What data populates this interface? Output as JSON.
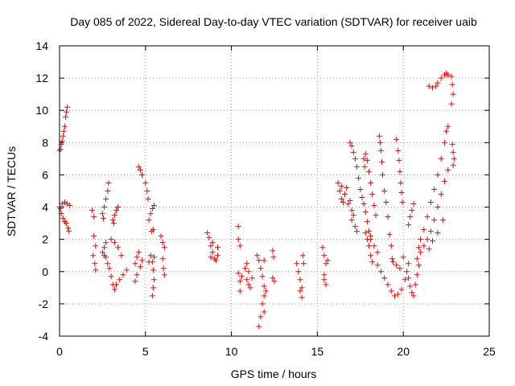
{
  "chart_data": {
    "type": "scatter",
    "title": "Day 085 of 2022, Sidereal Day-to-day VTEC variation (SDTVAR) for receiver uaib",
    "xlabel": "GPS time / hours",
    "ylabel": "SDTVAR / TECUs",
    "xlim": [
      0,
      25
    ],
    "ylim": [
      -4,
      14
    ],
    "xticks": [
      0,
      5,
      10,
      15,
      20,
      25
    ],
    "yticks": [
      -4,
      -2,
      0,
      2,
      4,
      6,
      8,
      10,
      12,
      14
    ],
    "grid": true,
    "marker": "+",
    "color": "#ff0000",
    "series": [
      {
        "name": "s1",
        "values": [
          [
            0.0,
            7.5
          ],
          [
            0.1,
            7.9
          ],
          [
            0.2,
            8.4
          ],
          [
            0.3,
            9.0
          ],
          [
            0.35,
            9.6
          ],
          [
            0.45,
            10.2
          ],
          [
            0.05,
            7.6
          ],
          [
            0.15,
            8.1
          ],
          [
            0.25,
            8.7
          ],
          [
            0.4,
            9.9
          ]
        ]
      },
      {
        "name": "s2",
        "values": [
          [
            0.0,
            4.0
          ],
          [
            0.1,
            3.6
          ],
          [
            0.2,
            3.3
          ],
          [
            0.3,
            3.1
          ],
          [
            0.4,
            3.0
          ],
          [
            0.5,
            2.7
          ],
          [
            0.55,
            2.5
          ],
          [
            0.15,
            4.2
          ],
          [
            0.3,
            4.3
          ],
          [
            0.45,
            4.2
          ],
          [
            0.6,
            4.1
          ],
          [
            0.05,
            3.9
          ]
        ]
      },
      {
        "name": "s3",
        "values": [
          [
            1.9,
            3.8
          ],
          [
            2.0,
            3.4
          ],
          [
            2.0,
            2.2
          ],
          [
            2.1,
            1.6
          ],
          [
            1.95,
            1.0
          ],
          [
            2.05,
            0.5
          ],
          [
            2.1,
            0.1
          ]
        ]
      },
      {
        "name": "s4",
        "values": [
          [
            2.5,
            3.6
          ],
          [
            2.6,
            4.0
          ],
          [
            2.7,
            4.5
          ],
          [
            2.8,
            5.0
          ],
          [
            2.85,
            5.5
          ],
          [
            2.55,
            3.3
          ]
        ]
      },
      {
        "name": "s5",
        "values": [
          [
            2.5,
            1.2
          ],
          [
            2.6,
            1.5
          ],
          [
            2.7,
            0.9
          ],
          [
            2.8,
            0.5
          ],
          [
            2.9,
            0.2
          ],
          [
            3.0,
            -0.3
          ],
          [
            3.1,
            -0.8
          ],
          [
            3.2,
            -1.1
          ],
          [
            3.3,
            -0.8
          ],
          [
            3.5,
            -0.5
          ],
          [
            3.7,
            -0.2
          ],
          [
            3.9,
            0.1
          ],
          [
            3.6,
            1.0
          ],
          [
            3.4,
            1.5
          ],
          [
            3.2,
            1.8
          ],
          [
            3.0,
            2.0
          ],
          [
            2.7,
            1.8
          ],
          [
            2.6,
            1.0
          ]
        ]
      },
      {
        "name": "s6",
        "values": [
          [
            3.1,
            3.2
          ],
          [
            3.2,
            3.5
          ],
          [
            3.3,
            3.8
          ],
          [
            3.4,
            4.0
          ],
          [
            3.15,
            3.0
          ]
        ]
      },
      {
        "name": "s7",
        "values": [
          [
            4.4,
            0.5
          ],
          [
            4.5,
            0.9
          ],
          [
            4.6,
            1.2
          ],
          [
            4.5,
            -0.2
          ],
          [
            4.4,
            -0.6
          ],
          [
            4.7,
            0.3
          ],
          [
            4.8,
            0.7
          ]
        ]
      },
      {
        "name": "s8",
        "values": [
          [
            4.6,
            6.5
          ],
          [
            4.7,
            6.3
          ],
          [
            4.8,
            6.0
          ],
          [
            5.0,
            5.5
          ],
          [
            5.1,
            5.0
          ],
          [
            5.15,
            4.5
          ]
        ]
      },
      {
        "name": "s9",
        "values": [
          [
            5.2,
            3.2
          ],
          [
            5.3,
            3.6
          ],
          [
            5.4,
            3.9
          ],
          [
            5.5,
            4.1
          ],
          [
            5.45,
            2.6
          ],
          [
            5.35,
            2.5
          ]
        ]
      },
      {
        "name": "s10",
        "values": [
          [
            5.3,
            1.0
          ],
          [
            5.4,
            0.6
          ],
          [
            5.45,
            0.1
          ],
          [
            5.5,
            -0.5
          ],
          [
            5.45,
            -1.0
          ],
          [
            5.4,
            -1.5
          ],
          [
            5.2,
            0.6
          ],
          [
            5.5,
            0.9
          ]
        ]
      },
      {
        "name": "s11",
        "values": [
          [
            5.9,
            2.2
          ],
          [
            6.0,
            1.8
          ],
          [
            6.1,
            1.5
          ],
          [
            6.0,
            0.8
          ],
          [
            6.05,
            0.2
          ],
          [
            6.1,
            -0.2
          ]
        ]
      },
      {
        "name": "s12",
        "values": [
          [
            8.6,
            2.4
          ],
          [
            8.7,
            2.1
          ],
          [
            8.8,
            1.6
          ],
          [
            8.9,
            1.2
          ],
          [
            9.0,
            0.8
          ],
          [
            9.1,
            0.7
          ],
          [
            9.2,
            1.0
          ],
          [
            8.9,
            1.8
          ],
          [
            9.2,
            1.5
          ],
          [
            8.8,
            0.9
          ]
        ]
      },
      {
        "name": "s13",
        "values": [
          [
            10.4,
            2.8
          ],
          [
            10.4,
            2.0
          ],
          [
            10.5,
            1.6
          ]
        ]
      },
      {
        "name": "s14",
        "values": [
          [
            10.4,
            -0.1
          ],
          [
            10.5,
            -0.6
          ],
          [
            10.5,
            -1.2
          ],
          [
            10.6,
            -0.3
          ],
          [
            10.9,
            -0.5
          ],
          [
            11.0,
            -0.8
          ],
          [
            11.1,
            -1.0
          ],
          [
            11.0,
            0.0
          ],
          [
            10.9,
            0.5
          ],
          [
            10.8,
            0.2
          ],
          [
            11.2,
            -0.4
          ]
        ]
      },
      {
        "name": "s15",
        "values": [
          [
            11.5,
            1.0
          ],
          [
            11.6,
            0.7
          ],
          [
            11.7,
            0.2
          ],
          [
            11.8,
            -0.3
          ],
          [
            11.9,
            -0.9
          ],
          [
            11.9,
            -1.5
          ],
          [
            11.8,
            -2.0
          ],
          [
            11.7,
            -2.8
          ],
          [
            11.6,
            -3.4
          ],
          [
            11.9,
            -2.5
          ],
          [
            12.0,
            -1.2
          ],
          [
            11.9,
            0.7
          ]
        ]
      },
      {
        "name": "s16",
        "values": [
          [
            12.4,
            1.3
          ],
          [
            12.45,
            0.9
          ],
          [
            12.4,
            -0.4
          ],
          [
            12.5,
            -0.6
          ]
        ]
      },
      {
        "name": "s17",
        "values": [
          [
            13.8,
            0.5
          ],
          [
            13.9,
            0.0
          ],
          [
            14.0,
            -0.5
          ],
          [
            14.1,
            -1.0
          ],
          [
            14.1,
            -1.6
          ],
          [
            14.15,
            1.0
          ],
          [
            14.2,
            0.5
          ],
          [
            14.0,
            -1.2
          ]
        ]
      },
      {
        "name": "s18",
        "values": [
          [
            15.3,
            1.5
          ],
          [
            15.4,
            1.0
          ],
          [
            15.5,
            0.5
          ],
          [
            15.4,
            -0.2
          ],
          [
            15.5,
            -0.8
          ],
          [
            15.4,
            -0.5
          ],
          [
            15.6,
            0.7
          ]
        ]
      },
      {
        "name": "s19",
        "values": [
          [
            16.2,
            5.5
          ],
          [
            16.3,
            5.0
          ],
          [
            16.4,
            4.5
          ],
          [
            16.5,
            4.3
          ],
          [
            16.6,
            4.8
          ],
          [
            16.8,
            4.2
          ],
          [
            17.0,
            3.8
          ],
          [
            17.1,
            3.5
          ],
          [
            17.2,
            2.8
          ],
          [
            17.3,
            2.5
          ],
          [
            16.4,
            5.3
          ],
          [
            16.7,
            5.2
          ],
          [
            16.9,
            4.4
          ],
          [
            17.0,
            3.2
          ]
        ]
      },
      {
        "name": "s20",
        "values": [
          [
            16.9,
            8.0
          ],
          [
            17.0,
            7.8
          ],
          [
            17.1,
            7.4
          ],
          [
            17.2,
            7.0
          ],
          [
            17.3,
            6.5
          ],
          [
            17.4,
            5.8
          ],
          [
            17.5,
            5.1
          ],
          [
            17.6,
            4.6
          ],
          [
            17.7,
            4.2
          ],
          [
            17.8,
            3.7
          ],
          [
            17.9,
            3.1
          ],
          [
            18.0,
            2.5
          ],
          [
            18.1,
            2.0
          ],
          [
            18.3,
            1.6
          ],
          [
            18.5,
            1.2
          ]
        ]
      },
      {
        "name": "s21",
        "values": [
          [
            17.7,
            7.0
          ],
          [
            17.8,
            7.3
          ],
          [
            17.9,
            6.9
          ],
          [
            18.0,
            6.2
          ],
          [
            18.1,
            5.5
          ],
          [
            18.2,
            4.8
          ],
          [
            18.3,
            4.1
          ],
          [
            18.4,
            3.5
          ],
          [
            17.75,
            6.5
          ]
        ]
      },
      {
        "name": "s22",
        "values": [
          [
            17.8,
            2.4
          ],
          [
            17.9,
            2.0
          ],
          [
            18.0,
            1.6
          ],
          [
            18.1,
            1.0
          ],
          [
            18.2,
            0.6
          ],
          [
            18.1,
            2.2
          ]
        ]
      },
      {
        "name": "s23",
        "values": [
          [
            18.6,
            8.4
          ],
          [
            18.7,
            7.5
          ],
          [
            18.75,
            6.8
          ],
          [
            18.8,
            6.0
          ],
          [
            18.9,
            5.0
          ],
          [
            19.0,
            4.3
          ],
          [
            19.1,
            3.4
          ],
          [
            19.2,
            2.3
          ],
          [
            19.3,
            1.6
          ],
          [
            19.35,
            0.8
          ],
          [
            18.65,
            8.0
          ]
        ]
      },
      {
        "name": "s24",
        "values": [
          [
            19.6,
            8.2
          ],
          [
            19.7,
            7.5
          ],
          [
            19.75,
            6.9
          ],
          [
            19.8,
            6.2
          ],
          [
            19.85,
            5.5
          ],
          [
            19.9,
            4.9
          ],
          [
            19.95,
            4.3
          ]
        ]
      },
      {
        "name": "s25",
        "values": [
          [
            18.5,
            0.4
          ],
          [
            18.7,
            0.0
          ],
          [
            18.9,
            -0.4
          ],
          [
            19.1,
            -0.8
          ],
          [
            19.3,
            -1.2
          ],
          [
            19.5,
            -1.5
          ],
          [
            19.7,
            -1.4
          ],
          [
            19.9,
            -1.1
          ],
          [
            20.1,
            -0.5
          ],
          [
            20.2,
            0.0
          ],
          [
            20.3,
            0.5
          ],
          [
            19.4,
            0.6
          ],
          [
            19.6,
            0.4
          ],
          [
            19.8,
            0.2
          ],
          [
            20.0,
            0.9
          ]
        ]
      },
      {
        "name": "s26",
        "values": [
          [
            20.4,
            3.4
          ],
          [
            20.5,
            3.8
          ],
          [
            20.6,
            4.2
          ],
          [
            20.3,
            2.9
          ]
        ]
      },
      {
        "name": "s27",
        "values": [
          [
            20.3,
            -0.4
          ],
          [
            20.4,
            -0.9
          ],
          [
            20.5,
            -1.3
          ],
          [
            20.6,
            -1.5
          ],
          [
            20.7,
            -0.8
          ],
          [
            20.8,
            -0.2
          ],
          [
            20.9,
            0.4
          ],
          [
            20.9,
            1.5
          ],
          [
            21.0,
            2.0
          ],
          [
            21.2,
            2.6
          ],
          [
            21.4,
            3.4
          ],
          [
            21.6,
            4.3
          ],
          [
            21.8,
            5.1
          ],
          [
            22.0,
            6.0
          ],
          [
            22.2,
            7.0
          ],
          [
            22.4,
            8.0
          ],
          [
            22.5,
            8.7
          ],
          [
            22.6,
            9.0
          ]
        ]
      },
      {
        "name": "s28",
        "values": [
          [
            20.8,
            0.8
          ],
          [
            21.0,
            1.2
          ],
          [
            21.2,
            1.6
          ],
          [
            21.4,
            2.0
          ],
          [
            21.6,
            2.5
          ],
          [
            21.8,
            3.2
          ],
          [
            22.0,
            4.0
          ],
          [
            22.2,
            4.8
          ],
          [
            22.4,
            5.6
          ],
          [
            22.6,
            6.3
          ],
          [
            21.5,
            1.4
          ],
          [
            21.7,
            1.9
          ],
          [
            22.0,
            2.4
          ],
          [
            22.3,
            3.2
          ]
        ]
      },
      {
        "name": "s29",
        "values": [
          [
            21.5,
            11.5
          ],
          [
            21.7,
            11.4
          ],
          [
            21.9,
            11.5
          ],
          [
            22.0,
            11.7
          ],
          [
            22.2,
            12.0
          ],
          [
            22.4,
            12.2
          ],
          [
            22.5,
            12.3
          ],
          [
            22.6,
            12.2
          ]
        ]
      },
      {
        "name": "s30",
        "values": [
          [
            22.8,
            12.1
          ],
          [
            22.85,
            11.6
          ],
          [
            22.9,
            11.0
          ],
          [
            22.8,
            10.4
          ],
          [
            22.85,
            7.9
          ],
          [
            22.9,
            7.4
          ],
          [
            22.95,
            7.0
          ],
          [
            22.9,
            6.6
          ]
        ]
      }
    ]
  }
}
